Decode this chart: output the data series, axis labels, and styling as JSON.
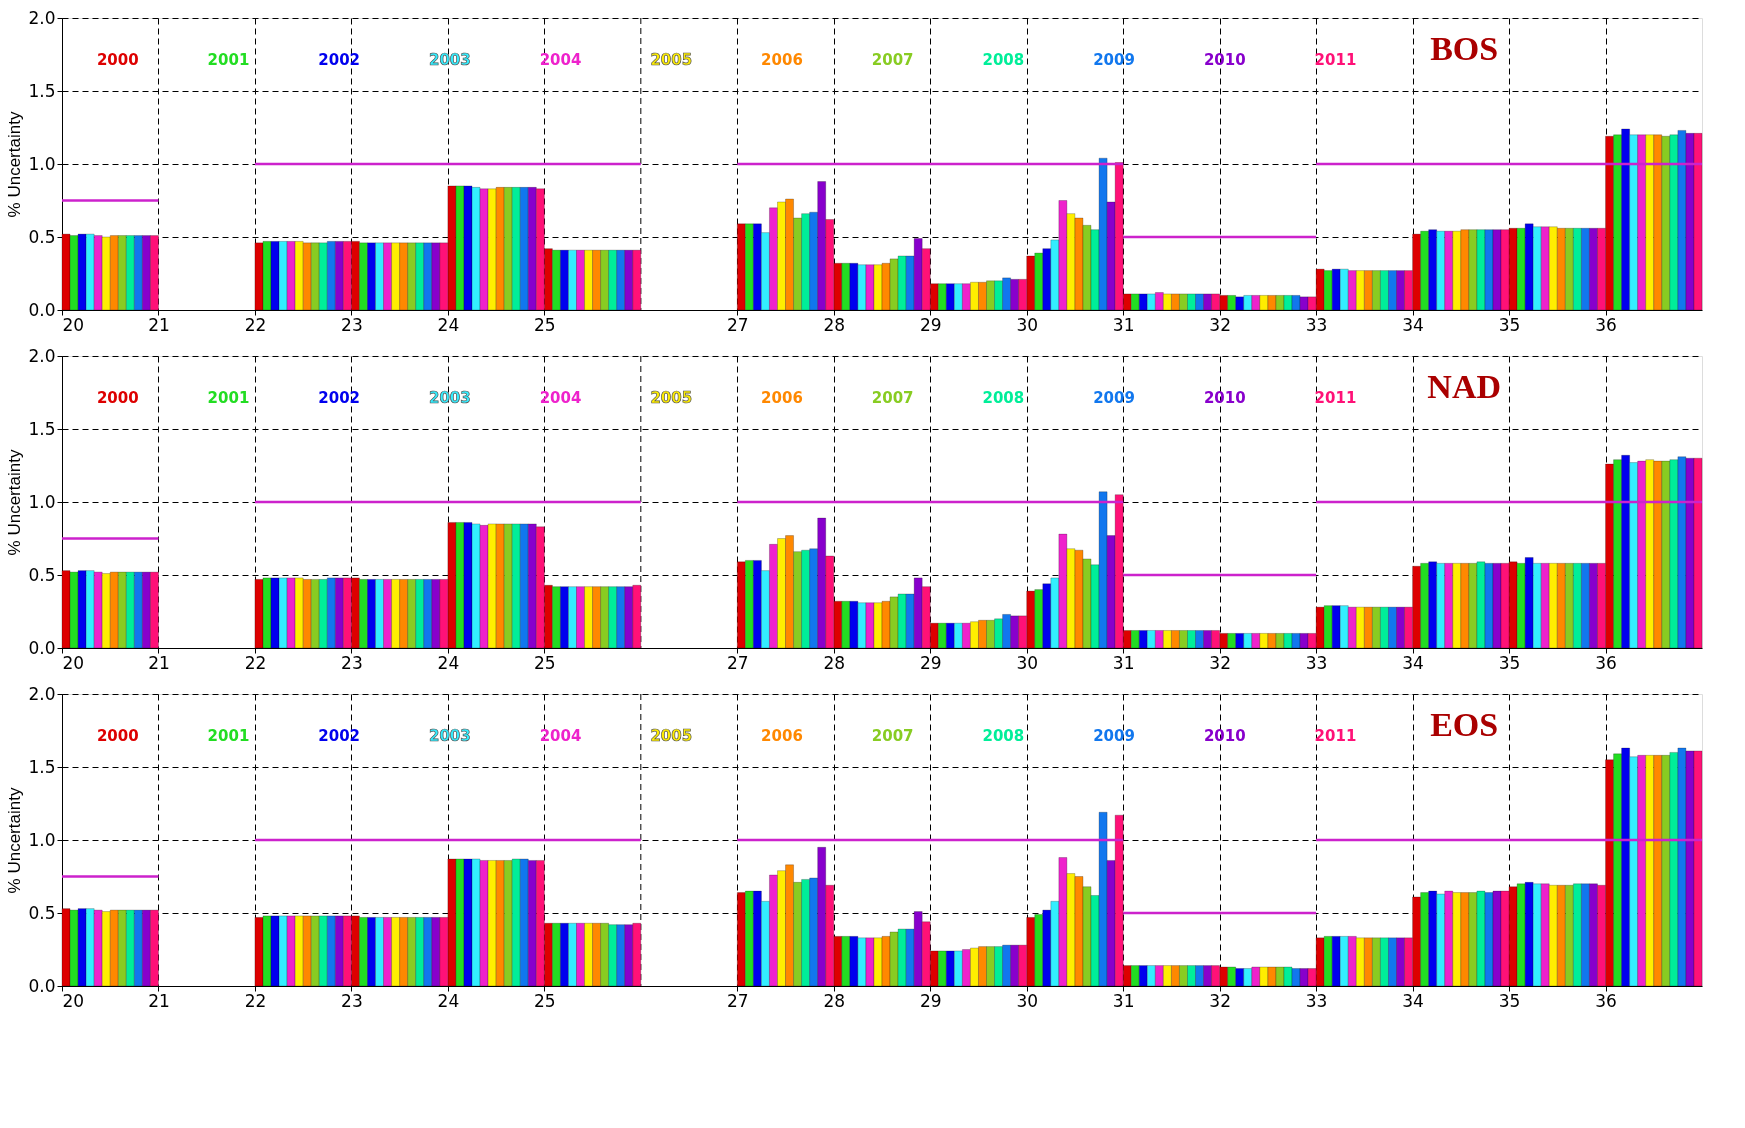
{
  "chart_data": [
    {
      "type": "bar",
      "title": "BOS",
      "ylabel": "% Uncertainty",
      "x": [
        20.5,
        22.5,
        23.5,
        24.5,
        25.5,
        27.5,
        28.5,
        29.5,
        30.5,
        31.5,
        32.5,
        33.5,
        34.5,
        35.5,
        36.5
      ],
      "xlim": [
        20,
        37
      ],
      "ref_lines": [
        {
          "axis": "x",
          "value": 26,
          "color": "#000000",
          "line_style": "dashed"
        }
      ],
      "xticks": [
        20,
        21,
        22,
        23,
        24,
        25,
        27,
        28,
        29,
        30,
        31,
        32,
        33,
        34,
        35,
        36
      ],
      "ylim": [
        0,
        2
      ],
      "yticks": [
        {
          "value": 0,
          "label": "0.0"
        },
        {
          "value": 0.5,
          "label": "0.5"
        },
        {
          "value": 1,
          "label": "1.0"
        },
        {
          "value": 1.5,
          "label": "1.5"
        },
        {
          "value": 2,
          "label": "2.0"
        }
      ],
      "grid": true,
      "legend": "top",
      "series": [
        {
          "name": "2000",
          "color": "#dd0000",
          "values": [
            0.52,
            0.46,
            0.47,
            0.85,
            0.42,
            0.59,
            0.32,
            0.18,
            0.37,
            0.11,
            0.1,
            0.28,
            0.52,
            0.56,
            1.19
          ]
        },
        {
          "name": "2001",
          "color": "#22dd22",
          "values": [
            0.51,
            0.47,
            0.46,
            0.85,
            0.41,
            0.59,
            0.32,
            0.18,
            0.39,
            0.11,
            0.1,
            0.27,
            0.54,
            0.56,
            1.2
          ]
        },
        {
          "name": "2002",
          "color": "#0000ee",
          "values": [
            0.52,
            0.47,
            0.46,
            0.85,
            0.41,
            0.59,
            0.32,
            0.18,
            0.42,
            0.11,
            0.09,
            0.28,
            0.55,
            0.59,
            1.24
          ]
        },
        {
          "name": "2003",
          "color": "#33eeff",
          "values": [
            0.52,
            0.47,
            0.46,
            0.84,
            0.41,
            0.53,
            0.31,
            0.18,
            0.48,
            0.11,
            0.1,
            0.28,
            0.54,
            0.57,
            1.2
          ]
        },
        {
          "name": "2004",
          "color": "#ee22cc",
          "values": [
            0.51,
            0.47,
            0.46,
            0.83,
            0.41,
            0.7,
            0.31,
            0.18,
            0.75,
            0.12,
            0.1,
            0.27,
            0.54,
            0.57,
            1.2
          ]
        },
        {
          "name": "2005",
          "color": "#ffee00",
          "values": [
            0.5,
            0.47,
            0.46,
            0.83,
            0.41,
            0.74,
            0.31,
            0.19,
            0.66,
            0.11,
            0.1,
            0.27,
            0.54,
            0.57,
            1.2
          ]
        },
        {
          "name": "2006",
          "color": "#ff8800",
          "values": [
            0.51,
            0.46,
            0.46,
            0.84,
            0.41,
            0.76,
            0.32,
            0.19,
            0.63,
            0.11,
            0.1,
            0.27,
            0.55,
            0.56,
            1.2
          ]
        },
        {
          "name": "2007",
          "color": "#88cc22",
          "values": [
            0.51,
            0.46,
            0.46,
            0.84,
            0.41,
            0.63,
            0.35,
            0.2,
            0.58,
            0.11,
            0.1,
            0.27,
            0.55,
            0.56,
            1.19
          ]
        },
        {
          "name": "2008",
          "color": "#00ee99",
          "values": [
            0.51,
            0.46,
            0.46,
            0.84,
            0.41,
            0.66,
            0.37,
            0.2,
            0.55,
            0.11,
            0.1,
            0.27,
            0.55,
            0.56,
            1.2
          ]
        },
        {
          "name": "2009",
          "color": "#1177ee",
          "values": [
            0.51,
            0.47,
            0.46,
            0.84,
            0.41,
            0.67,
            0.37,
            0.22,
            1.04,
            0.11,
            0.1,
            0.27,
            0.55,
            0.56,
            1.23
          ]
        },
        {
          "name": "2010",
          "color": "#8800cc",
          "values": [
            0.51,
            0.47,
            0.46,
            0.84,
            0.41,
            0.88,
            0.49,
            0.21,
            0.74,
            0.11,
            0.09,
            0.27,
            0.55,
            0.56,
            1.21
          ]
        },
        {
          "name": "2011",
          "color": "#ff1177",
          "values": [
            0.51,
            0.47,
            0.46,
            0.83,
            0.41,
            0.62,
            0.42,
            0.21,
            1.01,
            0.11,
            0.09,
            0.27,
            0.55,
            0.56,
            1.21
          ]
        },
        {
          "type": "line",
          "color": "#cc22cc",
          "x": [
            20,
            21
          ],
          "values": [
            0.75,
            0.75
          ]
        },
        {
          "type": "line",
          "color": "#cc22cc",
          "x": [
            22,
            26
          ],
          "values": [
            1,
            1
          ]
        },
        {
          "type": "line",
          "color": "#cc22cc",
          "x": [
            27,
            31
          ],
          "values": [
            1,
            1
          ]
        },
        {
          "type": "line",
          "color": "#cc22cc",
          "x": [
            31,
            33
          ],
          "values": [
            0.5,
            0.5
          ]
        },
        {
          "type": "line",
          "color": "#cc22cc",
          "x": [
            33,
            37
          ],
          "values": [
            1,
            1
          ]
        }
      ]
    },
    {
      "type": "bar",
      "title": "NAD",
      "ylabel": "% Uncertainty",
      "x": [
        20.5,
        22.5,
        23.5,
        24.5,
        25.5,
        27.5,
        28.5,
        29.5,
        30.5,
        31.5,
        32.5,
        33.5,
        34.5,
        35.5,
        36.5
      ],
      "xlim": [
        20,
        37
      ],
      "ref_lines": [
        {
          "axis": "x",
          "value": 26,
          "color": "#000000",
          "line_style": "dashed"
        }
      ],
      "xticks": [
        20,
        21,
        22,
        23,
        24,
        25,
        27,
        28,
        29,
        30,
        31,
        32,
        33,
        34,
        35,
        36
      ],
      "ylim": [
        0,
        2
      ],
      "yticks": [
        {
          "value": 0,
          "label": "0.0"
        },
        {
          "value": 0.5,
          "label": "0.5"
        },
        {
          "value": 1,
          "label": "1.0"
        },
        {
          "value": 1.5,
          "label": "1.5"
        },
        {
          "value": 2,
          "label": "2.0"
        }
      ],
      "grid": true,
      "legend": "top",
      "series": [
        {
          "name": "2000",
          "color": "#dd0000",
          "values": [
            0.53,
            0.47,
            0.48,
            0.86,
            0.43,
            0.59,
            0.32,
            0.17,
            0.39,
            0.12,
            0.1,
            0.28,
            0.56,
            0.59,
            1.26
          ]
        },
        {
          "name": "2001",
          "color": "#22dd22",
          "values": [
            0.52,
            0.48,
            0.47,
            0.86,
            0.42,
            0.6,
            0.32,
            0.17,
            0.4,
            0.12,
            0.1,
            0.29,
            0.58,
            0.58,
            1.29
          ]
        },
        {
          "name": "2002",
          "color": "#0000ee",
          "values": [
            0.53,
            0.48,
            0.47,
            0.86,
            0.42,
            0.6,
            0.32,
            0.17,
            0.44,
            0.12,
            0.1,
            0.29,
            0.59,
            0.62,
            1.32
          ]
        },
        {
          "name": "2003",
          "color": "#33eeff",
          "values": [
            0.53,
            0.48,
            0.47,
            0.85,
            0.42,
            0.53,
            0.31,
            0.17,
            0.48,
            0.12,
            0.1,
            0.29,
            0.58,
            0.58,
            1.27
          ]
        },
        {
          "name": "2004",
          "color": "#ee22cc",
          "values": [
            0.52,
            0.48,
            0.47,
            0.84,
            0.42,
            0.71,
            0.31,
            0.17,
            0.78,
            0.12,
            0.1,
            0.28,
            0.58,
            0.58,
            1.28
          ]
        },
        {
          "name": "2005",
          "color": "#ffee00",
          "values": [
            0.51,
            0.48,
            0.47,
            0.85,
            0.42,
            0.75,
            0.31,
            0.18,
            0.68,
            0.12,
            0.1,
            0.28,
            0.58,
            0.58,
            1.29
          ]
        },
        {
          "name": "2006",
          "color": "#ff8800",
          "values": [
            0.52,
            0.47,
            0.47,
            0.85,
            0.42,
            0.77,
            0.32,
            0.19,
            0.67,
            0.12,
            0.1,
            0.28,
            0.58,
            0.58,
            1.28
          ]
        },
        {
          "name": "2007",
          "color": "#88cc22",
          "values": [
            0.52,
            0.47,
            0.47,
            0.85,
            0.42,
            0.66,
            0.35,
            0.19,
            0.61,
            0.12,
            0.1,
            0.28,
            0.58,
            0.58,
            1.28
          ]
        },
        {
          "name": "2008",
          "color": "#00ee99",
          "values": [
            0.52,
            0.47,
            0.47,
            0.85,
            0.42,
            0.67,
            0.37,
            0.2,
            0.57,
            0.12,
            0.1,
            0.28,
            0.59,
            0.58,
            1.29
          ]
        },
        {
          "name": "2009",
          "color": "#1177ee",
          "values": [
            0.52,
            0.48,
            0.47,
            0.85,
            0.42,
            0.68,
            0.37,
            0.23,
            1.07,
            0.12,
            0.1,
            0.28,
            0.58,
            0.58,
            1.31
          ]
        },
        {
          "name": "2010",
          "color": "#8800cc",
          "values": [
            0.52,
            0.48,
            0.47,
            0.85,
            0.42,
            0.89,
            0.48,
            0.22,
            0.77,
            0.12,
            0.1,
            0.28,
            0.58,
            0.58,
            1.3
          ]
        },
        {
          "name": "2011",
          "color": "#ff1177",
          "values": [
            0.52,
            0.48,
            0.47,
            0.83,
            0.43,
            0.63,
            0.42,
            0.22,
            1.05,
            0.12,
            0.1,
            0.28,
            0.58,
            0.58,
            1.3
          ]
        },
        {
          "type": "line",
          "color": "#cc22cc",
          "x": [
            20,
            21
          ],
          "values": [
            0.75,
            0.75
          ]
        },
        {
          "type": "line",
          "color": "#cc22cc",
          "x": [
            22,
            26
          ],
          "values": [
            1,
            1
          ]
        },
        {
          "type": "line",
          "color": "#cc22cc",
          "x": [
            27,
            31
          ],
          "values": [
            1,
            1
          ]
        },
        {
          "type": "line",
          "color": "#cc22cc",
          "x": [
            31,
            33
          ],
          "values": [
            0.5,
            0.5
          ]
        },
        {
          "type": "line",
          "color": "#cc22cc",
          "x": [
            33,
            37
          ],
          "values": [
            1,
            1
          ]
        }
      ]
    },
    {
      "type": "bar",
      "title": "EOS",
      "ylabel": "% Uncertainty",
      "x": [
        20.5,
        22.5,
        23.5,
        24.5,
        25.5,
        27.5,
        28.5,
        29.5,
        30.5,
        31.5,
        32.5,
        33.5,
        34.5,
        35.5,
        36.5
      ],
      "xlim": [
        20,
        37
      ],
      "ref_lines": [
        {
          "axis": "x",
          "value": 26,
          "color": "#000000",
          "line_style": "dashed"
        }
      ],
      "xticks": [
        20,
        21,
        22,
        23,
        24,
        25,
        27,
        28,
        29,
        30,
        31,
        32,
        33,
        34,
        35,
        36
      ],
      "ylim": [
        0,
        2
      ],
      "yticks": [
        {
          "value": 0,
          "label": "0.0"
        },
        {
          "value": 0.5,
          "label": "0.5"
        },
        {
          "value": 1,
          "label": "1.0"
        },
        {
          "value": 1.5,
          "label": "1.5"
        },
        {
          "value": 2,
          "label": "2.0"
        }
      ],
      "grid": true,
      "legend": "top",
      "series": [
        {
          "name": "2000",
          "color": "#dd0000",
          "values": [
            0.53,
            0.47,
            0.48,
            0.87,
            0.43,
            0.64,
            0.34,
            0.24,
            0.47,
            0.14,
            0.13,
            0.33,
            0.61,
            0.68,
            1.55
          ]
        },
        {
          "name": "2001",
          "color": "#22dd22",
          "values": [
            0.52,
            0.48,
            0.47,
            0.87,
            0.43,
            0.65,
            0.34,
            0.24,
            0.49,
            0.14,
            0.13,
            0.34,
            0.64,
            0.7,
            1.59
          ]
        },
        {
          "name": "2002",
          "color": "#0000ee",
          "values": [
            0.53,
            0.48,
            0.47,
            0.87,
            0.43,
            0.65,
            0.34,
            0.24,
            0.52,
            0.14,
            0.12,
            0.34,
            0.65,
            0.71,
            1.63
          ]
        },
        {
          "name": "2003",
          "color": "#33eeff",
          "values": [
            0.53,
            0.48,
            0.47,
            0.87,
            0.43,
            0.58,
            0.33,
            0.24,
            0.58,
            0.14,
            0.12,
            0.34,
            0.63,
            0.7,
            1.57
          ]
        },
        {
          "name": "2004",
          "color": "#ee22cc",
          "values": [
            0.52,
            0.48,
            0.47,
            0.86,
            0.43,
            0.76,
            0.33,
            0.25,
            0.88,
            0.14,
            0.13,
            0.34,
            0.65,
            0.7,
            1.58
          ]
        },
        {
          "name": "2005",
          "color": "#ffee00",
          "values": [
            0.51,
            0.48,
            0.47,
            0.86,
            0.43,
            0.79,
            0.33,
            0.26,
            0.77,
            0.14,
            0.13,
            0.33,
            0.64,
            0.69,
            1.58
          ]
        },
        {
          "name": "2006",
          "color": "#ff8800",
          "values": [
            0.52,
            0.48,
            0.47,
            0.86,
            0.43,
            0.83,
            0.34,
            0.27,
            0.75,
            0.14,
            0.13,
            0.33,
            0.64,
            0.69,
            1.58
          ]
        },
        {
          "name": "2007",
          "color": "#88cc22",
          "values": [
            0.52,
            0.48,
            0.47,
            0.86,
            0.43,
            0.71,
            0.37,
            0.27,
            0.68,
            0.14,
            0.13,
            0.33,
            0.64,
            0.69,
            1.58
          ]
        },
        {
          "name": "2008",
          "color": "#00ee99",
          "values": [
            0.52,
            0.48,
            0.47,
            0.87,
            0.42,
            0.73,
            0.39,
            0.27,
            0.62,
            0.14,
            0.13,
            0.33,
            0.65,
            0.7,
            1.6
          ]
        },
        {
          "name": "2009",
          "color": "#1177ee",
          "values": [
            0.52,
            0.48,
            0.47,
            0.87,
            0.42,
            0.74,
            0.39,
            0.28,
            1.19,
            0.14,
            0.12,
            0.33,
            0.64,
            0.7,
            1.63
          ]
        },
        {
          "name": "2010",
          "color": "#8800cc",
          "values": [
            0.52,
            0.48,
            0.47,
            0.86,
            0.42,
            0.95,
            0.51,
            0.28,
            0.86,
            0.14,
            0.12,
            0.33,
            0.65,
            0.7,
            1.61
          ]
        },
        {
          "name": "2011",
          "color": "#ff1177",
          "values": [
            0.52,
            0.48,
            0.47,
            0.86,
            0.43,
            0.69,
            0.44,
            0.28,
            1.17,
            0.14,
            0.12,
            0.33,
            0.65,
            0.69,
            1.61
          ]
        },
        {
          "type": "line",
          "color": "#cc22cc",
          "x": [
            20,
            21
          ],
          "values": [
            0.75,
            0.75
          ]
        },
        {
          "type": "line",
          "color": "#cc22cc",
          "x": [
            22,
            26
          ],
          "values": [
            1,
            1
          ]
        },
        {
          "type": "line",
          "color": "#cc22cc",
          "x": [
            27,
            31
          ],
          "values": [
            1,
            1
          ]
        },
        {
          "type": "line",
          "color": "#cc22cc",
          "x": [
            31,
            33
          ],
          "values": [
            0.5,
            0.5
          ]
        },
        {
          "type": "line",
          "color": "#cc22cc",
          "x": [
            33,
            37
          ],
          "values": [
            1,
            1
          ]
        }
      ]
    }
  ]
}
